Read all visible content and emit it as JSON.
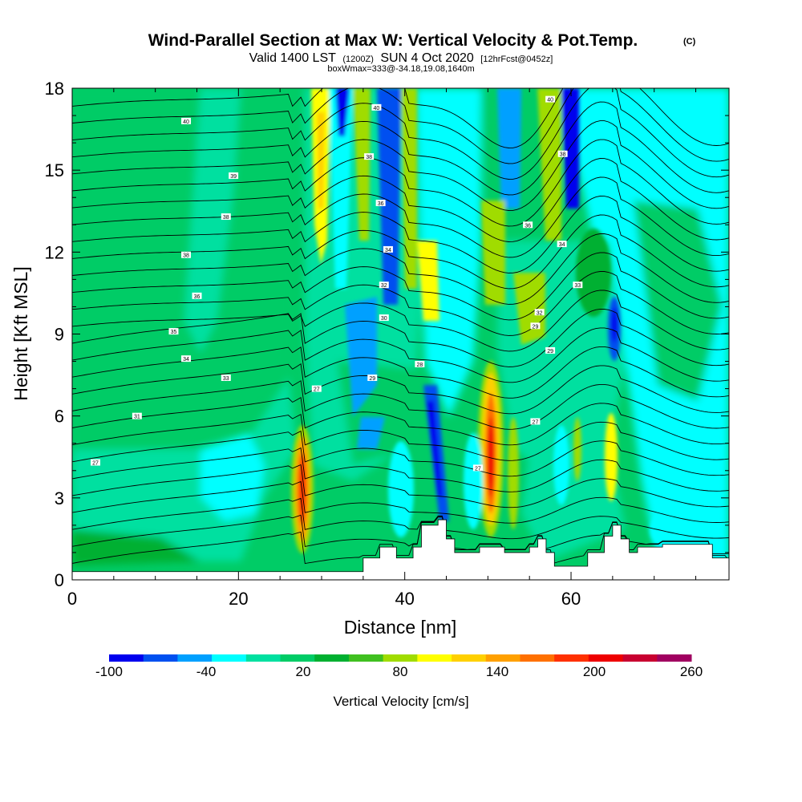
{
  "chart_data": {
    "type": "heatmap",
    "title": "Wind-Parallel Section at Max W: Vertical Velocity & Pot.Temp.",
    "title_mark": "(C)",
    "subtitle": {
      "valid": "Valid 1400 LST",
      "utc": "(1200Z)",
      "date": "SUN 4 Oct 2020",
      "forecast": "[12hrFcst@0452z]",
      "box": "boxWmax=333@-34.18,19.08,1640m"
    },
    "xlabel": "Distance [nm]",
    "ylabel": "Height [Kft MSL]",
    "xlim": [
      0,
      79
    ],
    "ylim": [
      0,
      18
    ],
    "x_ticks": [
      "0",
      "20",
      "40",
      "60"
    ],
    "x_tick_values": [
      0,
      20,
      40,
      60
    ],
    "y_ticks": [
      "0",
      "3",
      "6",
      "9",
      "12",
      "15",
      "18"
    ],
    "y_tick_values": [
      0,
      3,
      6,
      9,
      12,
      15,
      18
    ],
    "colorbar": {
      "label": "Vertical Velocity [cm/s]",
      "tick_labels": [
        "-100",
        "-40",
        "20",
        "80",
        "140",
        "200",
        "260"
      ],
      "colors": [
        "#0000ee",
        "#0050f0",
        "#00a0ff",
        "#00ffff",
        "#00e0a0",
        "#00cc66",
        "#00b030",
        "#40c020",
        "#a0dc00",
        "#ffff00",
        "#ffd000",
        "#ffa000",
        "#ff7000",
        "#ff3000",
        "#ee0000",
        "#c80030",
        "#a00060"
      ]
    },
    "terrain_kft": [
      [
        0,
        0.3
      ],
      [
        34,
        0.3
      ],
      [
        35,
        0.8
      ],
      [
        37,
        1.2
      ],
      [
        39,
        0.8
      ],
      [
        41,
        1.2
      ],
      [
        42,
        2.0
      ],
      [
        44,
        2.2
      ],
      [
        45,
        1.5
      ],
      [
        46,
        1.0
      ],
      [
        49,
        1.2
      ],
      [
        51,
        1.2
      ],
      [
        52,
        1.0
      ],
      [
        55,
        1.2
      ],
      [
        56,
        1.5
      ],
      [
        57,
        1.0
      ],
      [
        58,
        0.5
      ],
      [
        60,
        0.5
      ],
      [
        62,
        1.0
      ],
      [
        64,
        1.6
      ],
      [
        65,
        2.0
      ],
      [
        66,
        1.5
      ],
      [
        67,
        1.0
      ],
      [
        68,
        1.2
      ],
      [
        71,
        1.3
      ],
      [
        74,
        1.3
      ],
      [
        77,
        0.8
      ],
      [
        79,
        0.6
      ]
    ],
    "isentrope_labels": [
      {
        "x": 2.8,
        "y": 4.3,
        "label": "27"
      },
      {
        "x": 7.8,
        "y": 6.0,
        "label": "31"
      },
      {
        "x": 18.5,
        "y": 7.4,
        "label": "33"
      },
      {
        "x": 13.7,
        "y": 8.1,
        "label": "34"
      },
      {
        "x": 12.2,
        "y": 9.1,
        "label": "35"
      },
      {
        "x": 15.0,
        "y": 10.4,
        "label": "36"
      },
      {
        "x": 13.7,
        "y": 11.9,
        "label": "38"
      },
      {
        "x": 18.5,
        "y": 13.3,
        "label": "38"
      },
      {
        "x": 19.4,
        "y": 14.8,
        "label": "39"
      },
      {
        "x": 13.7,
        "y": 16.8,
        "label": "40"
      },
      {
        "x": 29.4,
        "y": 7.0,
        "label": "27"
      },
      {
        "x": 36.1,
        "y": 7.4,
        "label": "29"
      },
      {
        "x": 37.5,
        "y": 9.6,
        "label": "30"
      },
      {
        "x": 37.5,
        "y": 10.8,
        "label": "32"
      },
      {
        "x": 38.0,
        "y": 12.1,
        "label": "34"
      },
      {
        "x": 37.1,
        "y": 13.8,
        "label": "36"
      },
      {
        "x": 35.7,
        "y": 15.5,
        "label": "38"
      },
      {
        "x": 36.6,
        "y": 17.3,
        "label": "40"
      },
      {
        "x": 41.8,
        "y": 7.9,
        "label": "28"
      },
      {
        "x": 48.8,
        "y": 4.1,
        "label": "27"
      },
      {
        "x": 55.7,
        "y": 5.8,
        "label": "27"
      },
      {
        "x": 57.5,
        "y": 8.4,
        "label": "29"
      },
      {
        "x": 55.7,
        "y": 9.3,
        "label": "29"
      },
      {
        "x": 56.2,
        "y": 9.8,
        "label": "32"
      },
      {
        "x": 60.8,
        "y": 10.8,
        "label": "33"
      },
      {
        "x": 58.9,
        "y": 12.3,
        "label": "34"
      },
      {
        "x": 54.8,
        "y": 13.0,
        "label": "36"
      },
      {
        "x": 59.0,
        "y": 15.6,
        "label": "38"
      },
      {
        "x": 57.5,
        "y": 17.6,
        "label": "40"
      }
    ],
    "isentrope_count": 28
  }
}
